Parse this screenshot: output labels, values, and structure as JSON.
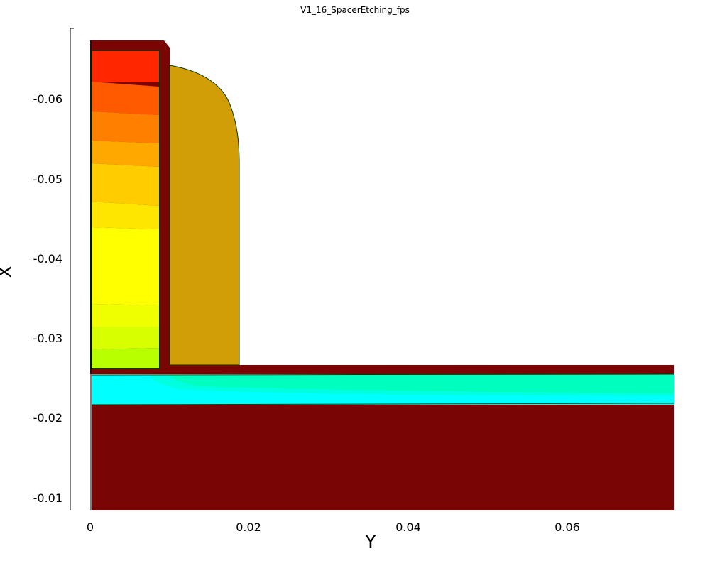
{
  "title": "V1_16_SpacerEtching_fps",
  "axes": {
    "x_label": "Y",
    "y_label": "X",
    "x_ticks": [
      "0",
      "0.02",
      "0.04",
      "0.06"
    ],
    "y_ticks": [
      "-0.06",
      "-0.05",
      "-0.04",
      "-0.03",
      "-0.02",
      "-0.01"
    ]
  },
  "colors": {
    "oxide": "#7a0505",
    "spacer": "#d19e08",
    "outline": "#003a00",
    "gate_contours": [
      "#ff2600",
      "#ff5a00",
      "#ff7f00",
      "#ffa800",
      "#ffcc00",
      "#ffe600",
      "#ffff00",
      "#f0ff00",
      "#d8ff00",
      "#b8ff00"
    ],
    "channel_contours": [
      "#00ffff",
      "#00ffe0",
      "#00ffbe"
    ]
  },
  "regions": [
    "oxide-liner",
    "spacer",
    "gate-contour-field",
    "substrate-oxide",
    "channel-contour-field"
  ]
}
